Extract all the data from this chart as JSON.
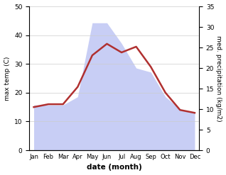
{
  "months": [
    "Jan",
    "Feb",
    "Mar",
    "Apr",
    "May",
    "Jun",
    "Jul",
    "Aug",
    "Sep",
    "Oct",
    "Nov",
    "Dec"
  ],
  "temperature": [
    15,
    16,
    16,
    22,
    33,
    37,
    34,
    36,
    29,
    20,
    14,
    13
  ],
  "precipitation": [
    11,
    11,
    11,
    13,
    31,
    31,
    26,
    20,
    19,
    13,
    10,
    9
  ],
  "temp_color": "#b03030",
  "precip_fill_color": "#c8cef5",
  "precip_edge_color": "#c8cef5",
  "temp_ylim": [
    0,
    50
  ],
  "precip_ylim": [
    0,
    35
  ],
  "temp_yticks": [
    0,
    10,
    20,
    30,
    40,
    50
  ],
  "precip_yticks": [
    0,
    5,
    10,
    15,
    20,
    25,
    30,
    35
  ],
  "xlabel": "date (month)",
  "ylabel_left": "max temp (C)",
  "ylabel_right": "med. precipitation (kg/m2)",
  "bg_color": "#ffffff"
}
